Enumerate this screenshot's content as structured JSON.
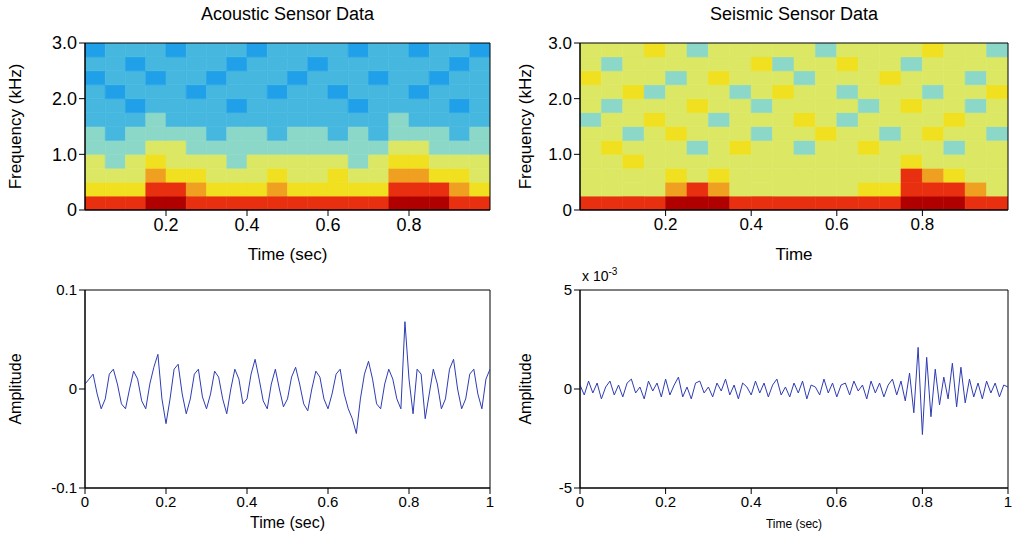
{
  "chart_data": [
    {
      "type": "heatmap",
      "title": "Acoustic Sensor Data",
      "x_label": "Time (sec)",
      "y_label": "Frequency (kHz)",
      "xlim": [
        0,
        1
      ],
      "xticks": [
        0.2,
        0.4,
        0.6,
        0.8
      ],
      "ylim": [
        0,
        3
      ],
      "yticks": [
        0,
        {
          "value": 1,
          "label": "1.0"
        },
        {
          "value": 2,
          "label": "2.0"
        },
        {
          "value": 3,
          "label": "3.0"
        }
      ],
      "x_edges": [
        0,
        0.05,
        0.1,
        0.15,
        0.2,
        0.25,
        0.3,
        0.35,
        0.4,
        0.45,
        0.5,
        0.55,
        0.6,
        0.65,
        0.7,
        0.75,
        0.8,
        0.85,
        0.9,
        0.95,
        1.0
      ],
      "y_edges": [
        0,
        0.25,
        0.5,
        0.75,
        1.0,
        1.25,
        1.5,
        1.75,
        2.0,
        2.25,
        2.5,
        2.75,
        3.0
      ],
      "clim": [
        0,
        10
      ],
      "cells": [
        [
          9,
          9,
          9,
          10,
          10,
          9,
          9,
          9,
          9,
          9,
          9,
          9,
          9,
          9,
          9,
          10,
          10,
          10,
          9,
          9
        ],
        [
          7,
          7,
          7,
          9,
          9,
          8,
          7,
          7,
          7,
          8,
          7,
          7,
          7,
          7,
          7,
          9,
          9,
          9,
          8,
          7
        ],
        [
          6,
          6,
          6,
          8,
          7,
          7,
          6,
          6,
          6,
          7,
          6,
          6,
          7,
          6,
          6,
          8,
          8,
          7,
          7,
          6
        ],
        [
          6,
          5,
          6,
          7,
          6,
          6,
          6,
          5,
          6,
          6,
          6,
          6,
          6,
          5,
          6,
          7,
          7,
          6,
          6,
          6
        ],
        [
          5,
          5,
          5,
          6,
          6,
          5,
          5,
          5,
          5,
          5,
          5,
          5,
          5,
          5,
          5,
          6,
          6,
          5,
          5,
          5
        ],
        [
          5,
          4,
          5,
          5,
          5,
          5,
          4,
          5,
          5,
          4,
          5,
          5,
          4,
          5,
          4,
          5,
          5,
          5,
          4,
          5
        ],
        [
          4,
          4,
          4,
          5,
          4,
          4,
          4,
          4,
          4,
          4,
          4,
          4,
          4,
          4,
          4,
          5,
          4,
          4,
          4,
          4
        ],
        [
          4,
          4,
          3,
          4,
          4,
          4,
          4,
          3,
          4,
          4,
          4,
          4,
          4,
          3,
          4,
          4,
          4,
          4,
          3,
          4
        ],
        [
          4,
          3,
          4,
          4,
          4,
          3,
          4,
          4,
          4,
          3,
          4,
          4,
          3,
          4,
          4,
          4,
          3,
          4,
          4,
          4
        ],
        [
          3,
          4,
          4,
          3,
          4,
          4,
          3,
          4,
          4,
          4,
          3,
          4,
          4,
          4,
          3,
          4,
          4,
          3,
          4,
          4
        ],
        [
          4,
          4,
          3,
          4,
          4,
          4,
          4,
          3,
          4,
          4,
          4,
          3,
          4,
          4,
          4,
          4,
          4,
          4,
          3,
          4
        ],
        [
          3,
          4,
          4,
          4,
          3,
          4,
          4,
          4,
          3,
          4,
          4,
          4,
          4,
          3,
          4,
          4,
          3,
          4,
          4,
          3
        ]
      ]
    },
    {
      "type": "heatmap",
      "title": "Seismic Sensor Data",
      "x_label": "Time",
      "y_label": "Frequency (kHz)",
      "xlim": [
        0,
        1
      ],
      "xticks": [
        0.2,
        0.4,
        0.6,
        0.8
      ],
      "ylim": [
        0,
        3
      ],
      "yticks": [
        0,
        {
          "value": 1,
          "label": "1.0"
        },
        {
          "value": 2,
          "label": "2.0"
        },
        {
          "value": 3,
          "label": "3.0"
        }
      ],
      "x_edges": [
        0,
        0.05,
        0.1,
        0.15,
        0.2,
        0.25,
        0.3,
        0.35,
        0.4,
        0.45,
        0.5,
        0.55,
        0.6,
        0.65,
        0.7,
        0.75,
        0.8,
        0.85,
        0.9,
        0.95,
        1.0
      ],
      "y_edges": [
        0,
        0.25,
        0.5,
        0.75,
        1.0,
        1.25,
        1.5,
        1.75,
        2.0,
        2.25,
        2.5,
        2.75,
        3.0
      ],
      "clim": [
        0,
        10
      ],
      "cells": [
        [
          9,
          9,
          9,
          9,
          10,
          10,
          10,
          9,
          9,
          9,
          9,
          9,
          9,
          9,
          9,
          10,
          10,
          10,
          9,
          9
        ],
        [
          6,
          6,
          6,
          6,
          8,
          9,
          8,
          6,
          6,
          6,
          6,
          6,
          6,
          7,
          7,
          9,
          9,
          9,
          8,
          6
        ],
        [
          6,
          6,
          6,
          6,
          7,
          6,
          7,
          6,
          6,
          6,
          6,
          6,
          6,
          6,
          6,
          9,
          8,
          7,
          6,
          6
        ],
        [
          6,
          6,
          7,
          6,
          6,
          6,
          6,
          6,
          6,
          6,
          6,
          6,
          6,
          6,
          6,
          7,
          6,
          6,
          6,
          6
        ],
        [
          6,
          7,
          6,
          6,
          6,
          5,
          6,
          7,
          6,
          6,
          5,
          6,
          6,
          7,
          6,
          6,
          6,
          5,
          6,
          6
        ],
        [
          6,
          6,
          5,
          6,
          7,
          6,
          6,
          6,
          5,
          6,
          6,
          7,
          6,
          6,
          5,
          6,
          7,
          6,
          6,
          5
        ],
        [
          5,
          6,
          6,
          7,
          6,
          6,
          5,
          6,
          6,
          6,
          7,
          6,
          5,
          6,
          6,
          6,
          6,
          7,
          6,
          6
        ],
        [
          6,
          5,
          6,
          6,
          6,
          7,
          6,
          6,
          5,
          6,
          6,
          6,
          6,
          5,
          6,
          7,
          6,
          6,
          5,
          6
        ],
        [
          6,
          6,
          7,
          5,
          6,
          6,
          6,
          5,
          6,
          7,
          6,
          6,
          5,
          6,
          6,
          6,
          5,
          6,
          6,
          7
        ],
        [
          7,
          6,
          6,
          6,
          5,
          6,
          7,
          6,
          6,
          6,
          5,
          6,
          6,
          6,
          7,
          6,
          6,
          6,
          5,
          6
        ],
        [
          6,
          5,
          6,
          6,
          6,
          6,
          6,
          6,
          7,
          5,
          6,
          6,
          7,
          6,
          6,
          5,
          6,
          6,
          6,
          6
        ],
        [
          6,
          6,
          6,
          7,
          6,
          5,
          6,
          6,
          6,
          6,
          6,
          5,
          6,
          6,
          6,
          6,
          7,
          6,
          6,
          5
        ]
      ]
    },
    {
      "type": "line",
      "x_label": "Time (sec)",
      "y_label": "Amplitude",
      "color": "#2e3cb4",
      "xlim": [
        0,
        1
      ],
      "xticks": [
        0,
        0.2,
        0.4,
        0.6,
        0.8,
        1
      ],
      "ylim": [
        -0.1,
        0.1
      ],
      "yticks": [
        -0.1,
        0,
        0.1
      ],
      "x": [
        0,
        0.01,
        0.02,
        0.03,
        0.04,
        0.05,
        0.06,
        0.07,
        0.08,
        0.09,
        0.1,
        0.11,
        0.12,
        0.13,
        0.14,
        0.15,
        0.16,
        0.17,
        0.18,
        0.19,
        0.2,
        0.21,
        0.22,
        0.23,
        0.24,
        0.25,
        0.26,
        0.27,
        0.28,
        0.29,
        0.3,
        0.31,
        0.32,
        0.33,
        0.34,
        0.35,
        0.36,
        0.37,
        0.38,
        0.39,
        0.4,
        0.41,
        0.42,
        0.43,
        0.44,
        0.45,
        0.46,
        0.47,
        0.48,
        0.49,
        0.5,
        0.51,
        0.52,
        0.53,
        0.54,
        0.55,
        0.56,
        0.57,
        0.58,
        0.59,
        0.6,
        0.61,
        0.62,
        0.63,
        0.64,
        0.65,
        0.66,
        0.67,
        0.68,
        0.69,
        0.7,
        0.71,
        0.72,
        0.73,
        0.74,
        0.75,
        0.76,
        0.77,
        0.78,
        0.79,
        0.8,
        0.81,
        0.82,
        0.83,
        0.84,
        0.85,
        0.86,
        0.87,
        0.88,
        0.89,
        0.9,
        0.91,
        0.92,
        0.93,
        0.94,
        0.95,
        0.96,
        0.97,
        0.98,
        0.99,
        1.0
      ],
      "values": [
        0.005,
        0.01,
        0.015,
        -0.005,
        -0.02,
        -0.01,
        0.015,
        0.02,
        0.005,
        -0.015,
        -0.02,
        0.0,
        0.018,
        0.01,
        -0.012,
        -0.02,
        0.005,
        0.022,
        0.035,
        -0.01,
        -0.035,
        -0.01,
        0.02,
        0.025,
        -0.005,
        -0.025,
        -0.01,
        0.015,
        0.02,
        -0.008,
        -0.02,
        -0.005,
        0.018,
        0.012,
        -0.01,
        -0.025,
        0.0,
        0.02,
        0.01,
        -0.015,
        -0.01,
        0.015,
        0.03,
        0.01,
        -0.012,
        -0.02,
        0.005,
        0.02,
        0.0,
        -0.018,
        -0.01,
        0.012,
        0.022,
        0.005,
        -0.015,
        -0.022,
        0.0,
        0.018,
        0.012,
        -0.01,
        -0.02,
        -0.005,
        0.015,
        0.02,
        -0.005,
        -0.02,
        -0.03,
        -0.045,
        -0.01,
        0.015,
        0.028,
        0.01,
        -0.015,
        -0.02,
        0.005,
        0.02,
        0.01,
        -0.01,
        -0.02,
        0.068,
        0.01,
        -0.025,
        0.02,
        0.015,
        -0.03,
        -0.005,
        0.02,
        0.005,
        -0.02,
        -0.01,
        0.02,
        0.03,
        0.0,
        -0.02,
        -0.01,
        0.015,
        0.02,
        -0.005,
        -0.02,
        0.01,
        0.02
      ]
    },
    {
      "type": "line",
      "x_label": "Time (sec)",
      "y_label": "Amplitude",
      "color": "#2e3cb4",
      "annotations": [
        {
          "text": "x 10",
          "superscript": "-3"
        }
      ],
      "xlim": [
        0,
        1
      ],
      "xticks": [
        0,
        0.2,
        0.4,
        0.6,
        0.8,
        1
      ],
      "ylim": [
        -5,
        5
      ],
      "yticks": [
        -5,
        0,
        5
      ],
      "x": [
        0,
        0.01,
        0.02,
        0.03,
        0.04,
        0.05,
        0.06,
        0.07,
        0.08,
        0.09,
        0.1,
        0.11,
        0.12,
        0.13,
        0.14,
        0.15,
        0.16,
        0.17,
        0.18,
        0.19,
        0.2,
        0.21,
        0.22,
        0.23,
        0.24,
        0.25,
        0.26,
        0.27,
        0.28,
        0.29,
        0.3,
        0.31,
        0.32,
        0.33,
        0.34,
        0.35,
        0.36,
        0.37,
        0.38,
        0.39,
        0.4,
        0.41,
        0.42,
        0.43,
        0.44,
        0.45,
        0.46,
        0.47,
        0.48,
        0.49,
        0.5,
        0.51,
        0.52,
        0.53,
        0.54,
        0.55,
        0.56,
        0.57,
        0.58,
        0.59,
        0.6,
        0.61,
        0.62,
        0.63,
        0.64,
        0.65,
        0.66,
        0.67,
        0.68,
        0.69,
        0.7,
        0.71,
        0.72,
        0.73,
        0.74,
        0.75,
        0.76,
        0.77,
        0.78,
        0.79,
        0.8,
        0.81,
        0.82,
        0.83,
        0.84,
        0.85,
        0.86,
        0.87,
        0.88,
        0.89,
        0.9,
        0.91,
        0.92,
        0.93,
        0.94,
        0.95,
        0.96,
        0.97,
        0.98,
        0.99,
        1.0
      ],
      "values": [
        0.2,
        -0.3,
        0.4,
        -0.2,
        0.3,
        -0.5,
        0.1,
        0.4,
        -0.3,
        0.2,
        -0.4,
        0.3,
        0.5,
        -0.2,
        0.1,
        -0.5,
        0.4,
        -0.1,
        0.3,
        -0.4,
        0.5,
        -0.3,
        0.2,
        0.6,
        -0.4,
        0.1,
        -0.5,
        0.3,
        0.4,
        -0.2,
        0.1,
        -0.4,
        0.3,
        -0.1,
        0.5,
        -0.3,
        0.2,
        -0.5,
        0.3,
        0.1,
        -0.3,
        0.4,
        -0.2,
        0.3,
        -0.4,
        0.2,
        0.5,
        -0.3,
        0.1,
        -0.4,
        0.3,
        -0.2,
        0.4,
        -0.5,
        0.2,
        0.1,
        -0.3,
        0.5,
        -0.2,
        0.3,
        -0.4,
        0.2,
        0.3,
        -0.3,
        0.4,
        -0.1,
        0.2,
        -0.5,
        0.4,
        -0.2,
        0.3,
        -0.4,
        0.2,
        0.5,
        -0.3,
        0.4,
        -0.6,
        0.8,
        -1.2,
        2.1,
        -2.3,
        1.6,
        -1.4,
        1.0,
        -0.8,
        0.6,
        -0.5,
        1.3,
        -0.9,
        1.1,
        -0.7,
        0.5,
        -0.4,
        0.3,
        -0.5,
        0.4,
        -0.2,
        0.3,
        -0.4,
        0.2,
        0.1
      ]
    }
  ]
}
